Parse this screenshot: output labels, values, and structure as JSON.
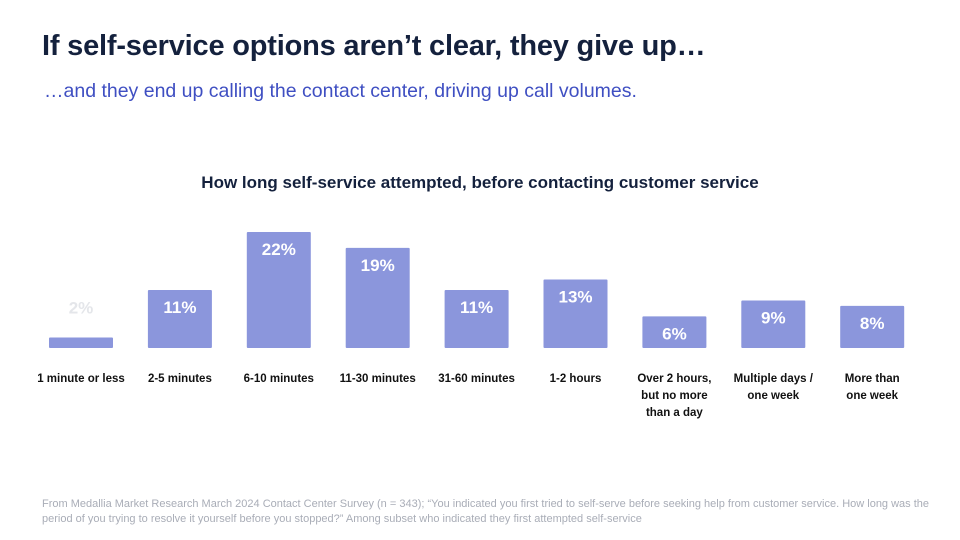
{
  "header": {
    "title": "If self-service options aren’t clear, they give up…",
    "subtitle": "…and they end up calling the contact center, driving up call volumes."
  },
  "chart_data": {
    "type": "bar",
    "title": "How long self-service attempted, before contacting customer service",
    "categories": [
      "1 minute or less",
      "2-5 minutes",
      "6-10 minutes",
      "11-30 minutes",
      "31-60 minutes",
      "1-2 hours",
      "Over 2 hours, but no more than a day",
      "Multiple days / one week",
      "More than one week"
    ],
    "values": [
      2,
      11,
      22,
      19,
      11,
      13,
      6,
      9,
      8
    ],
    "data_labels": [
      "2%",
      "11%",
      "22%",
      "19%",
      "11%",
      "13%",
      "6%",
      "9%",
      "8%"
    ],
    "unit": "%",
    "ylim": [
      0,
      22
    ],
    "grid": false,
    "legend": "none",
    "bar_color": "#8b96dc",
    "inside_label_color": "#ffffff",
    "outside_label_color": "#e4e6ea"
  },
  "footer": {
    "source": "From Medallia Market Research March 2024 Contact Center Survey (n = 343); “You indicated you first tried to self-serve before seeking help from customer service.  How long was the period of you trying to resolve it yourself before you stopped?” Among subset who indicated they first attempted self-service"
  }
}
